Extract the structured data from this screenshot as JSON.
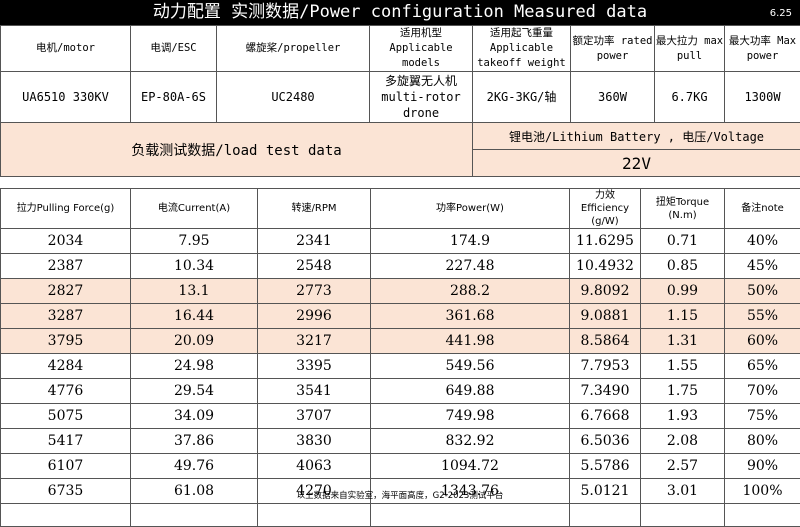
{
  "title": "动力配置 实测数据/Power configuration Measured data",
  "date": "6.25",
  "spec_headers": [
    "电机/motor",
    "电调/ESC",
    "螺旋桨/propeller",
    "适用机型 Applicable models",
    "适用起飞重量 Applicable takeoff weight",
    "额定功率 rated power",
    "最大拉力 max pull",
    "最大功率 Max power"
  ],
  "spec_values": [
    "UA6510 330KV",
    "EP-80A-6S",
    "UC2480",
    "多旋翼无人机 multi-rotor drone",
    "2KG-3KG/轴",
    "360W",
    "6.7KG",
    "1300W"
  ],
  "load_title": "负载测试数据/load test data",
  "battery": "锂电池/Lithium Battery , 电压/Voltage",
  "voltage": "22V",
  "data_headers": [
    "拉力Pulling Force(g)",
    "电流Current(A)",
    "转速/RPM",
    "功率Power(W)",
    "力效 Efficiency (g/W)",
    "扭矩Torque (N.m)",
    "备注note"
  ],
  "rows": [
    [
      "2034",
      "7.95",
      "2341",
      "174.9",
      "11.6295",
      "0.71",
      "40%"
    ],
    [
      "2387",
      "10.34",
      "2548",
      "227.48",
      "10.4932",
      "0.85",
      "45%"
    ],
    [
      "2827",
      "13.1",
      "2773",
      "288.2",
      "9.8092",
      "0.99",
      "50%"
    ],
    [
      "3287",
      "16.44",
      "2996",
      "361.68",
      "9.0881",
      "1.15",
      "55%"
    ],
    [
      "3795",
      "20.09",
      "3217",
      "441.98",
      "8.5864",
      "1.31",
      "60%"
    ],
    [
      "4284",
      "24.98",
      "3395",
      "549.56",
      "7.7953",
      "1.55",
      "65%"
    ],
    [
      "4776",
      "29.54",
      "3541",
      "649.88",
      "7.3490",
      "1.75",
      "70%"
    ],
    [
      "5075",
      "34.09",
      "3707",
      "749.98",
      "6.7668",
      "1.93",
      "75%"
    ],
    [
      "5417",
      "37.86",
      "3830",
      "832.92",
      "6.5036",
      "2.08",
      "80%"
    ],
    [
      "6107",
      "49.76",
      "4063",
      "1094.72",
      "5.5786",
      "2.57",
      "90%"
    ],
    [
      "6735",
      "61.08",
      "4270",
      "1343.76",
      "5.0121",
      "3.01",
      "100%"
    ]
  ],
  "highlighted_rows": [
    2,
    3,
    4
  ],
  "highlight_color": "#fbe4d5",
  "footer": "以上数据来自实验室，海平面高度，G2-2023测试平台"
}
